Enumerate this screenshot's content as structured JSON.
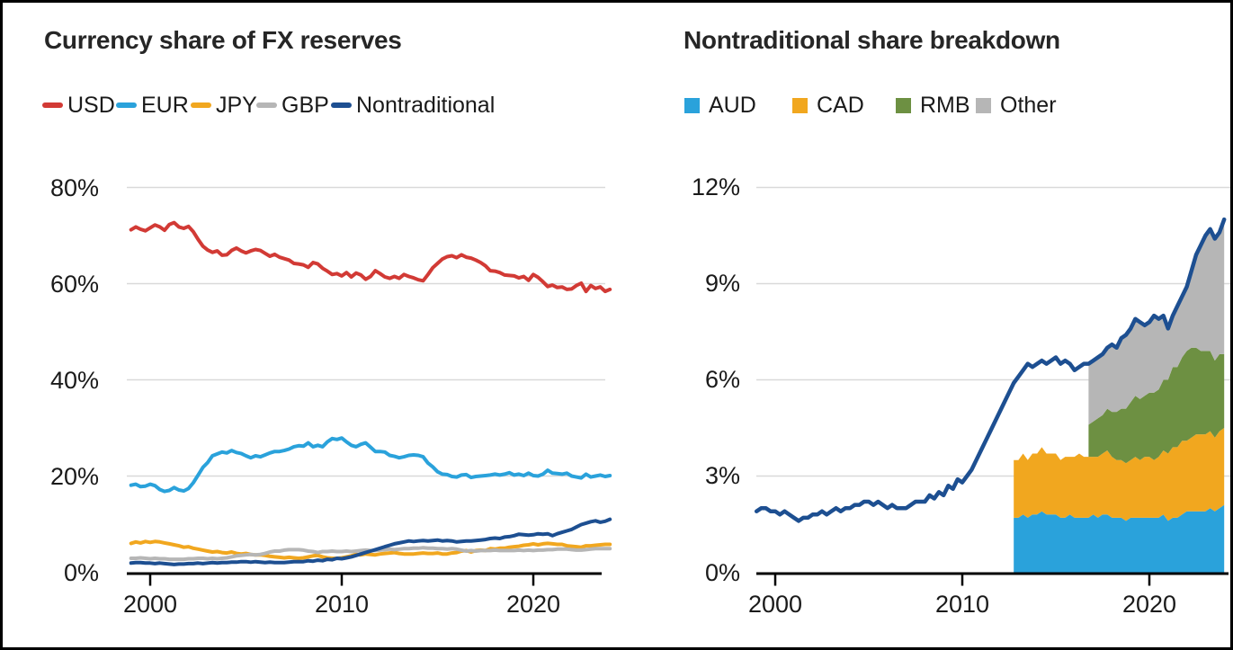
{
  "page": {
    "background": "#ffffff",
    "border_color": "#000000",
    "text_color": "#1a1a1a",
    "title_color": "#262626",
    "gridline_color": "#d9d9d9",
    "axis_color": "#000000"
  },
  "chart_data": [
    {
      "id": "fx-reserve-shares",
      "type": "line",
      "title": "Currency share of FX reserves",
      "x_start": 1999.0,
      "x_step": 0.25,
      "x_tick_years": [
        2000,
        2010,
        2020
      ],
      "x_tick_labels": [
        "2000",
        "2010",
        "2020"
      ],
      "y_tick_values": [
        80,
        60,
        40,
        20,
        0
      ],
      "y_tick_labels": [
        "80%",
        "60%",
        "40%",
        "20%",
        "0%"
      ],
      "ylim": [
        0,
        84
      ],
      "grid": "on",
      "legend_position": "top",
      "series": [
        {
          "name": "USD",
          "color": "#d23a35",
          "values": [
            71.2,
            71.8,
            71.3,
            71.0,
            71.6,
            72.2,
            71.8,
            71.1,
            72.3,
            72.7,
            71.8,
            71.5,
            71.9,
            70.8,
            69.2,
            67.8,
            67.0,
            66.5,
            66.8,
            65.9,
            66.0,
            66.9,
            67.4,
            66.8,
            66.4,
            66.8,
            67.1,
            66.9,
            66.3,
            65.7,
            66.1,
            65.5,
            65.2,
            64.9,
            64.2,
            64.1,
            63.9,
            63.4,
            64.4,
            64.1,
            63.2,
            62.6,
            61.9,
            62.1,
            61.6,
            62.3,
            61.4,
            62.2,
            61.8,
            60.9,
            61.5,
            62.7,
            62.1,
            61.4,
            61.1,
            61.5,
            61.1,
            61.9,
            61.5,
            61.2,
            60.8,
            60.6,
            61.9,
            63.3,
            64.2,
            65.1,
            65.6,
            65.8,
            65.4,
            66.0,
            65.5,
            65.3,
            64.9,
            64.4,
            63.7,
            62.7,
            62.6,
            62.3,
            61.8,
            61.7,
            61.6,
            61.2,
            61.5,
            60.7,
            61.9,
            61.3,
            60.4,
            59.4,
            59.7,
            59.2,
            59.3,
            58.8,
            58.9,
            59.6,
            60.1,
            58.4,
            59.6,
            59.0,
            59.3,
            58.4,
            58.8
          ]
        },
        {
          "name": "EUR",
          "color": "#2aa2db",
          "values": [
            18.1,
            18.3,
            17.8,
            17.9,
            18.3,
            18.0,
            17.2,
            16.8,
            17.0,
            17.6,
            17.1,
            16.9,
            17.4,
            18.6,
            20.2,
            21.8,
            22.8,
            24.2,
            24.6,
            25.0,
            24.8,
            25.3,
            24.9,
            24.7,
            24.2,
            23.8,
            24.2,
            24.0,
            24.4,
            24.8,
            25.1,
            25.1,
            25.3,
            25.6,
            26.1,
            26.3,
            26.2,
            26.9,
            26.1,
            26.4,
            26.1,
            27.1,
            27.8,
            27.6,
            27.9,
            27.1,
            26.4,
            26.1,
            26.6,
            26.9,
            26.0,
            25.1,
            25.1,
            25.0,
            24.3,
            24.1,
            23.8,
            24.0,
            24.3,
            24.4,
            24.3,
            24.0,
            22.7,
            21.9,
            20.9,
            20.4,
            20.3,
            19.9,
            19.8,
            20.2,
            20.3,
            19.7,
            19.9,
            20.0,
            20.1,
            20.2,
            20.4,
            20.2,
            20.4,
            20.7,
            20.2,
            20.4,
            20.1,
            20.6,
            20.1,
            20.0,
            20.4,
            21.2,
            20.6,
            20.5,
            20.4,
            20.6,
            20.0,
            19.8,
            19.6,
            20.4,
            19.8,
            20.0,
            20.2,
            19.9,
            20.1
          ]
        },
        {
          "name": "JPY",
          "color": "#f1a71f",
          "values": [
            6.0,
            6.3,
            6.1,
            6.4,
            6.2,
            6.4,
            6.3,
            6.1,
            5.9,
            5.7,
            5.5,
            5.2,
            5.3,
            5.0,
            4.8,
            4.6,
            4.4,
            4.2,
            4.3,
            4.1,
            4.0,
            4.2,
            3.9,
            3.8,
            3.9,
            3.7,
            3.6,
            3.6,
            3.5,
            3.3,
            3.2,
            3.1,
            3.0,
            3.1,
            3.0,
            2.9,
            3.0,
            3.2,
            3.4,
            3.5,
            3.2,
            3.0,
            2.9,
            2.9,
            3.0,
            3.2,
            3.4,
            3.7,
            3.6,
            3.8,
            3.7,
            3.6,
            3.8,
            3.9,
            4.0,
            4.1,
            3.9,
            3.8,
            3.8,
            3.8,
            3.9,
            4.0,
            3.9,
            3.9,
            4.0,
            3.8,
            3.8,
            4.0,
            4.1,
            4.4,
            4.5,
            4.2,
            4.5,
            4.6,
            4.5,
            4.9,
            4.8,
            5.0,
            5.0,
            5.2,
            5.3,
            5.4,
            5.6,
            5.7,
            5.9,
            5.7,
            5.9,
            6.0,
            5.9,
            5.8,
            5.8,
            5.5,
            5.4,
            5.3,
            5.2,
            5.5,
            5.5,
            5.6,
            5.7,
            5.8,
            5.8
          ]
        },
        {
          "name": "GBP",
          "color": "#b6b6b6",
          "values": [
            2.9,
            2.9,
            3.0,
            2.9,
            2.8,
            2.9,
            2.8,
            2.8,
            2.7,
            2.7,
            2.7,
            2.7,
            2.8,
            2.8,
            2.9,
            2.9,
            2.8,
            2.9,
            2.8,
            2.9,
            3.0,
            3.2,
            3.4,
            3.5,
            3.6,
            3.7,
            3.6,
            3.7,
            3.9,
            4.2,
            4.4,
            4.4,
            4.6,
            4.7,
            4.7,
            4.7,
            4.6,
            4.4,
            4.3,
            4.1,
            4.3,
            4.3,
            4.4,
            4.3,
            4.3,
            4.4,
            4.3,
            4.4,
            4.5,
            4.6,
            4.5,
            4.5,
            4.6,
            4.7,
            4.8,
            4.7,
            4.8,
            4.9,
            4.9,
            5.0,
            5.0,
            5.1,
            5.0,
            5.0,
            4.9,
            4.9,
            4.8,
            4.9,
            4.8,
            4.6,
            4.4,
            4.5,
            4.4,
            4.5,
            4.5,
            4.5,
            4.6,
            4.5,
            4.5,
            4.5,
            4.5,
            4.6,
            4.5,
            4.6,
            4.5,
            4.6,
            4.6,
            4.7,
            4.7,
            4.8,
            4.8,
            4.8,
            4.7,
            4.6,
            4.6,
            4.7,
            4.8,
            4.9,
            4.9,
            4.9,
            4.9
          ]
        },
        {
          "name": "Nontraditional",
          "color": "#1d4f91",
          "values": [
            1.9,
            2.0,
            2.0,
            1.9,
            1.9,
            1.8,
            1.9,
            1.8,
            1.7,
            1.6,
            1.7,
            1.7,
            1.8,
            1.8,
            1.9,
            1.8,
            1.9,
            2.0,
            1.9,
            2.0,
            2.0,
            2.1,
            2.1,
            2.2,
            2.2,
            2.1,
            2.2,
            2.1,
            2.0,
            2.1,
            2.0,
            2.0,
            2.0,
            2.1,
            2.2,
            2.2,
            2.2,
            2.4,
            2.3,
            2.5,
            2.4,
            2.7,
            2.6,
            2.9,
            2.8,
            3.0,
            3.2,
            3.5,
            3.8,
            4.1,
            4.4,
            4.7,
            5.0,
            5.3,
            5.6,
            5.9,
            6.1,
            6.3,
            6.5,
            6.4,
            6.5,
            6.6,
            6.5,
            6.6,
            6.7,
            6.5,
            6.6,
            6.5,
            6.3,
            6.4,
            6.5,
            6.5,
            6.6,
            6.7,
            6.8,
            7.0,
            7.1,
            7.0,
            7.3,
            7.4,
            7.6,
            7.9,
            7.8,
            7.7,
            7.8,
            8.0,
            7.9,
            8.0,
            7.6,
            8.0,
            8.3,
            8.6,
            8.9,
            9.4,
            9.9,
            10.2,
            10.5,
            10.7,
            10.4,
            10.6,
            11.0
          ]
        }
      ]
    },
    {
      "id": "nontraditional-breakdown",
      "type": "area",
      "title": "Nontraditional share breakdown",
      "x_start": 1999.0,
      "x_step": 0.25,
      "x_tick_years": [
        2000,
        2010,
        2020
      ],
      "x_tick_labels": [
        "2000",
        "2010",
        "2020"
      ],
      "y_tick_values": [
        12,
        9,
        6,
        3,
        0
      ],
      "y_tick_labels": [
        "12%",
        "9%",
        "6%",
        "3%",
        "0%"
      ],
      "ylim": [
        0,
        12.6
      ],
      "grid": "on",
      "legend_position": "top",
      "stack_series": [
        {
          "name": "AUD",
          "color": "#2aa2db",
          "start_year": 2012.75,
          "values": [
            1.7,
            1.7,
            1.8,
            1.7,
            1.8,
            1.8,
            1.9,
            1.8,
            1.8,
            1.8,
            1.7,
            1.7,
            1.8,
            1.7,
            1.7,
            1.7,
            1.7,
            1.8,
            1.7,
            1.8,
            1.8,
            1.7,
            1.7,
            1.7,
            1.6,
            1.7,
            1.7,
            1.7,
            1.7,
            1.7,
            1.7,
            1.7,
            1.8,
            1.6,
            1.7,
            1.7,
            1.8,
            1.9,
            1.9,
            1.9,
            1.9,
            1.9,
            2.0,
            1.9,
            2.0,
            2.1
          ]
        },
        {
          "name": "CAD",
          "color": "#f1a71f",
          "start_year": 2012.75,
          "values": [
            1.8,
            1.8,
            1.9,
            1.8,
            1.9,
            1.9,
            2.0,
            1.9,
            1.9,
            1.9,
            1.8,
            1.9,
            1.8,
            1.9,
            2.0,
            1.9,
            1.9,
            1.8,
            1.9,
            1.9,
            2.0,
            1.9,
            1.8,
            1.8,
            1.8,
            1.8,
            1.9,
            1.8,
            1.9,
            1.9,
            1.8,
            1.9,
            2.0,
            2.1,
            2.2,
            2.2,
            2.3,
            2.2,
            2.3,
            2.4,
            2.4,
            2.4,
            2.4,
            2.3,
            2.4,
            2.4
          ]
        },
        {
          "name": "RMB",
          "color": "#6d9042",
          "start_year": 2016.75,
          "values": [
            1.0,
            1.1,
            1.2,
            1.2,
            1.3,
            1.4,
            1.5,
            1.6,
            1.7,
            1.8,
            1.9,
            1.9,
            1.9,
            2.0,
            2.1,
            2.1,
            2.2,
            2.3,
            2.5,
            2.5,
            2.6,
            2.8,
            2.8,
            2.7,
            2.6,
            2.6,
            2.5,
            2.4,
            2.4,
            2.3
          ]
        },
        {
          "name": "Other",
          "color": "#b6b6b6",
          "start_year": 2016.75,
          "values": [
            1.9,
            1.9,
            1.9,
            1.9,
            1.9,
            2.1,
            2.0,
            2.2,
            2.3,
            2.3,
            2.4,
            2.4,
            2.2,
            2.2,
            2.4,
            2.2,
            2.0,
            1.6,
            1.6,
            1.9,
            1.9,
            2.0,
            2.4,
            2.9,
            3.3,
            3.6,
            3.8,
            3.8,
            3.8,
            4.2
          ]
        }
      ],
      "line_series": {
        "name": "Nontraditional",
        "color": "#1d4f91",
        "values": [
          1.9,
          2.0,
          2.0,
          1.9,
          1.9,
          1.8,
          1.9,
          1.8,
          1.7,
          1.6,
          1.7,
          1.7,
          1.8,
          1.8,
          1.9,
          1.8,
          1.9,
          2.0,
          1.9,
          2.0,
          2.0,
          2.1,
          2.1,
          2.2,
          2.2,
          2.1,
          2.2,
          2.1,
          2.0,
          2.1,
          2.0,
          2.0,
          2.0,
          2.1,
          2.2,
          2.2,
          2.2,
          2.4,
          2.3,
          2.5,
          2.4,
          2.7,
          2.6,
          2.9,
          2.8,
          3.0,
          3.2,
          3.5,
          3.8,
          4.1,
          4.4,
          4.7,
          5.0,
          5.3,
          5.6,
          5.9,
          6.1,
          6.3,
          6.5,
          6.4,
          6.5,
          6.6,
          6.5,
          6.6,
          6.7,
          6.5,
          6.6,
          6.5,
          6.3,
          6.4,
          6.5,
          6.5,
          6.6,
          6.7,
          6.8,
          7.0,
          7.1,
          7.0,
          7.3,
          7.4,
          7.6,
          7.9,
          7.8,
          7.7,
          7.8,
          8.0,
          7.9,
          8.0,
          7.6,
          8.0,
          8.3,
          8.6,
          8.9,
          9.4,
          9.9,
          10.2,
          10.5,
          10.7,
          10.4,
          10.6,
          11.0
        ]
      }
    }
  ]
}
